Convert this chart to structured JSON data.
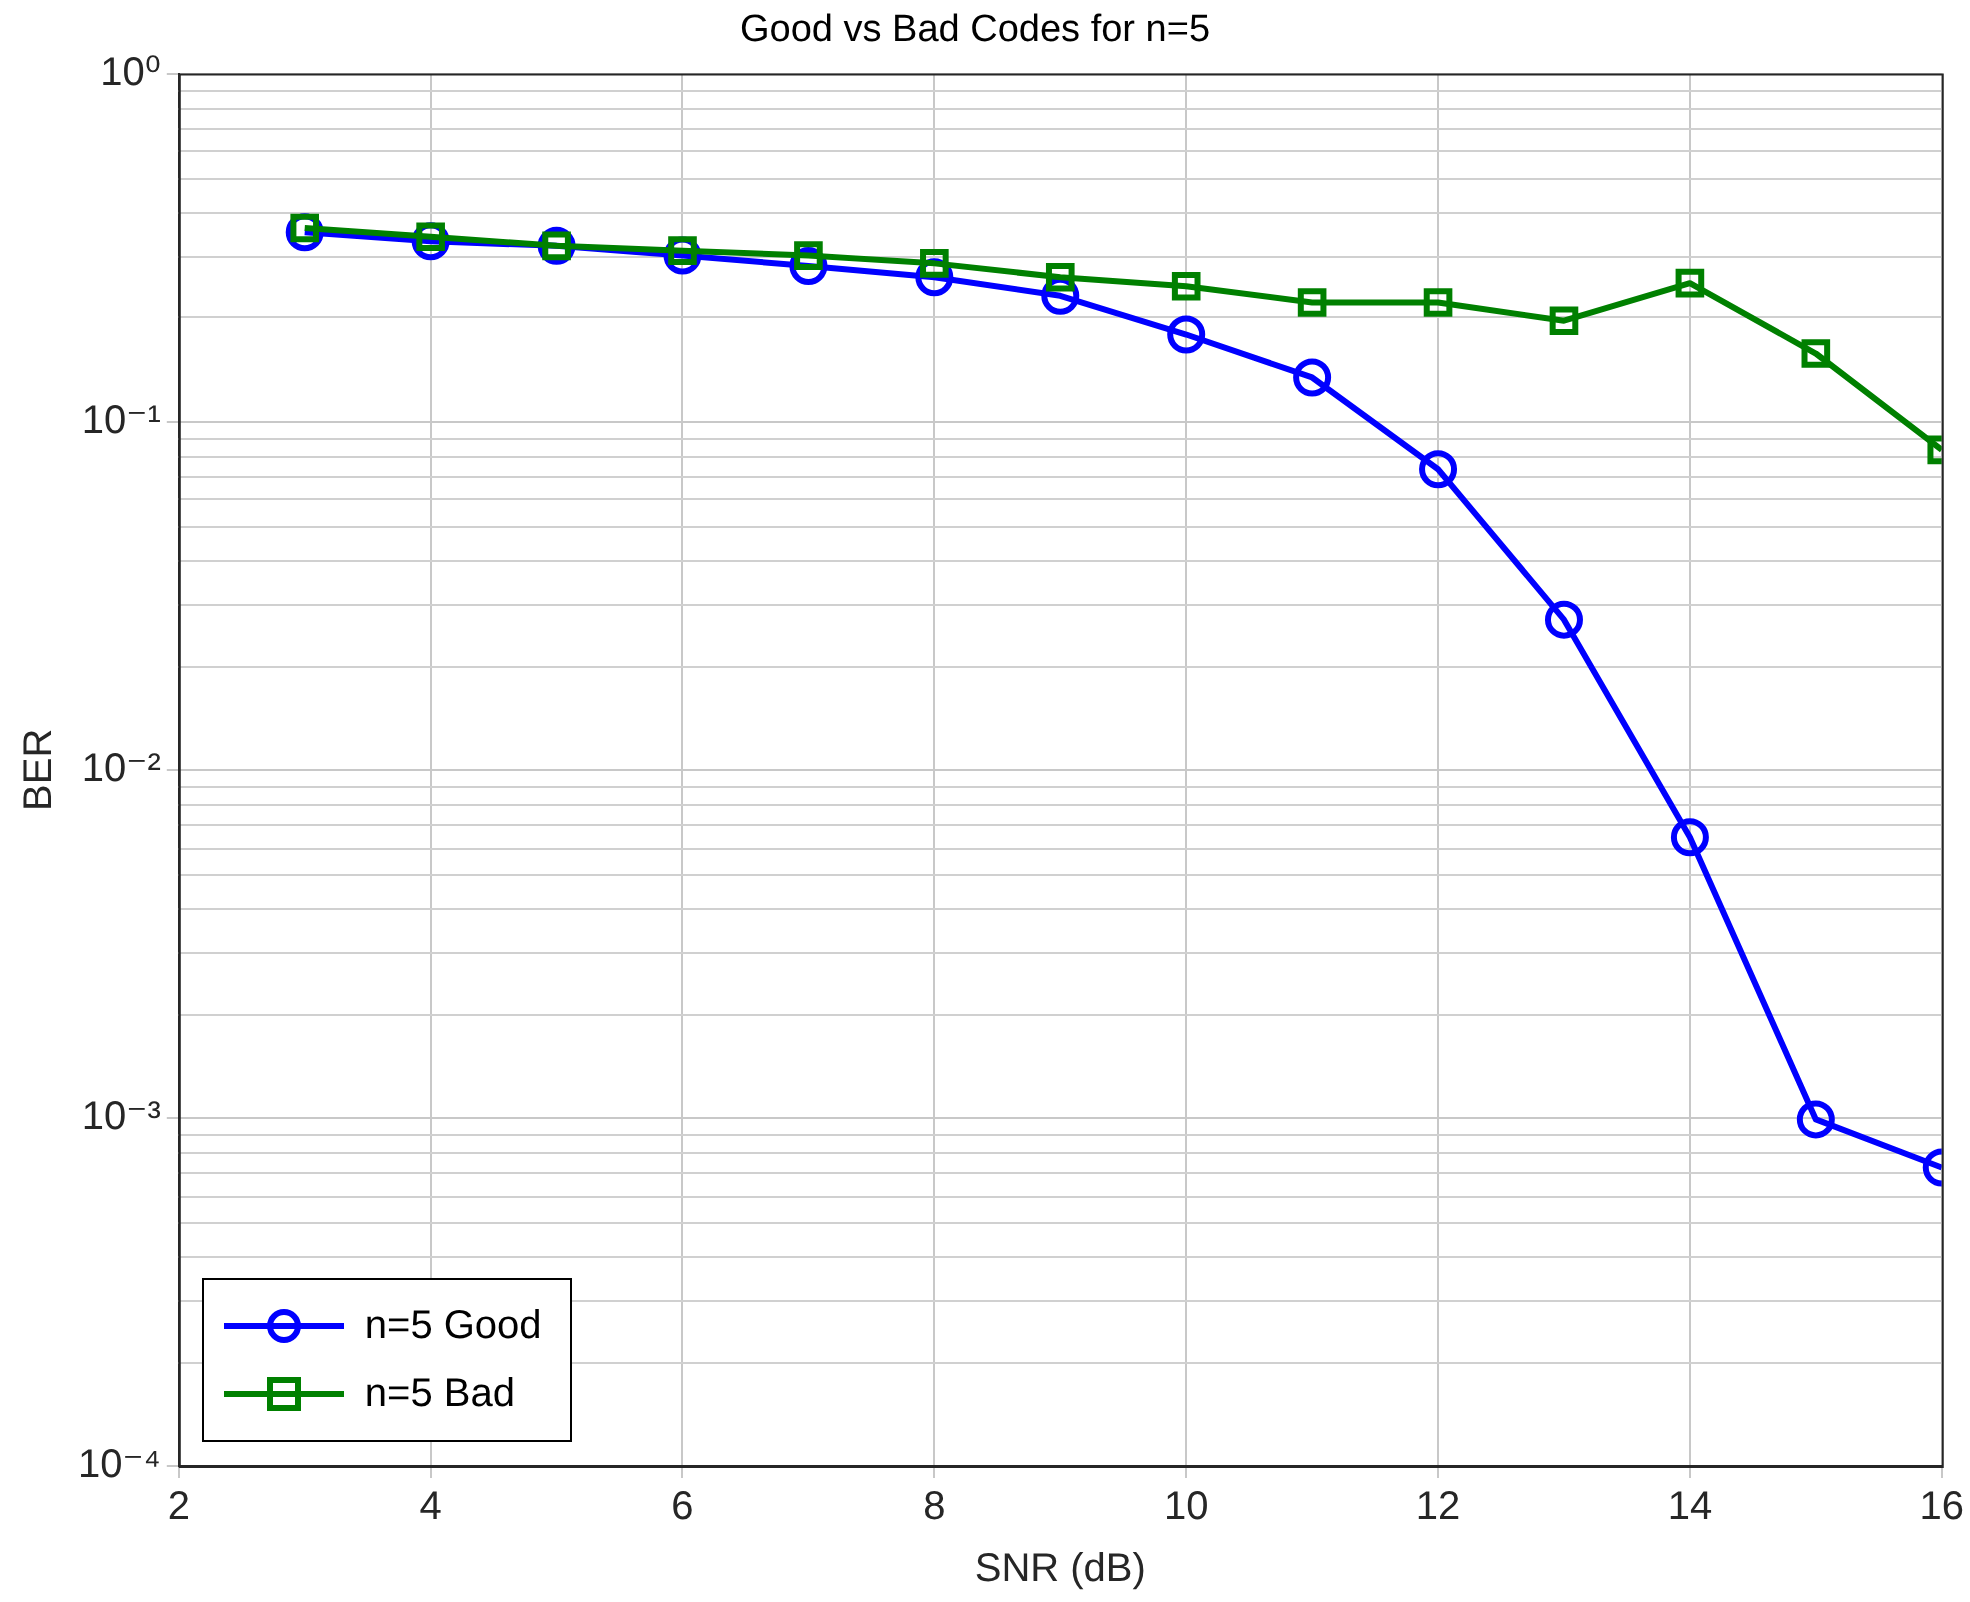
{
  "chart_data": {
    "type": "line",
    "title": "Good vs Bad Codes for n=5",
    "xlabel": "SNR (dB)",
    "ylabel": "BER",
    "x": [
      3,
      4,
      5,
      6,
      7,
      8,
      9,
      10,
      11,
      12,
      13,
      14,
      15,
      16
    ],
    "series": [
      {
        "name": "n=5 Good",
        "color": "#0000ff",
        "marker": "circle",
        "values": [
          0.35,
          0.33,
          0.32,
          0.3,
          0.28,
          0.26,
          0.23,
          0.178,
          0.134,
          0.073,
          0.027,
          0.0064,
          0.00099,
          0.00072
        ]
      },
      {
        "name": "n=5 Bad",
        "color": "#008000",
        "marker": "square",
        "values": [
          0.36,
          0.34,
          0.32,
          0.31,
          0.3,
          0.285,
          0.26,
          0.245,
          0.22,
          0.22,
          0.195,
          0.25,
          0.157,
          0.083
        ]
      }
    ],
    "log": "y",
    "xlim": [
      2,
      16
    ],
    "xticks": [
      2,
      4,
      6,
      8,
      10,
      12,
      14,
      16
    ],
    "ylim": [
      0.0001,
      1
    ],
    "yticks": [
      {
        "value": 0.0001,
        "label": "10⁻⁴"
      },
      {
        "value": 0.001,
        "label": "10⁻³"
      },
      {
        "value": 0.01,
        "label": "10⁻²"
      },
      {
        "value": 0.1,
        "label": "10⁻¹"
      },
      {
        "value": 1,
        "label": "10⁰"
      }
    ],
    "grid": true,
    "legend": "bottom left",
    "line_style": "solid"
  }
}
